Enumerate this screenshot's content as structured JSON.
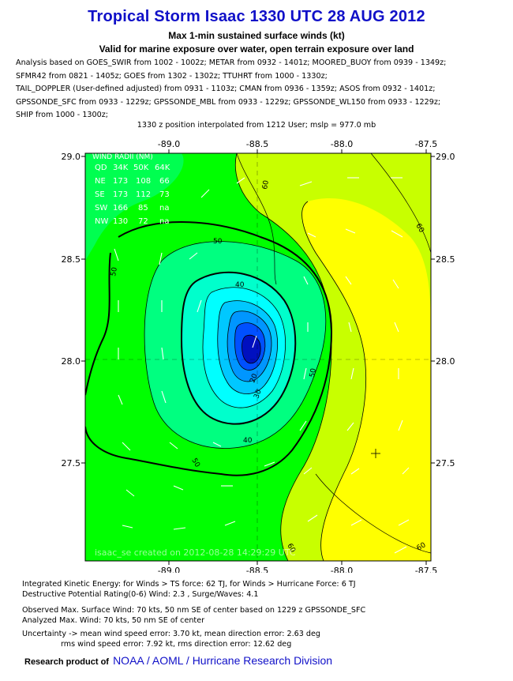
{
  "header": {
    "title": "Tropical Storm Isaac 1330 UTC 28 AUG 2012",
    "subtitle1": "Max 1-min sustained surface winds (kt)",
    "subtitle2": "Valid for marine exposure over water, open terrain exposure over land"
  },
  "analysis_lines": [
    "Analysis based on GOES_SWIR from 1002 - 1002z; METAR from 0932 - 1401z; MOORED_BUOY from 0939 - 1349z;",
    "SFMR42 from 0821 - 1405z; GOES from 1302 - 1302z; TTUHRT from 1000 - 1330z;",
    "TAIL_DOPPLER (User-defined adjusted) from 0931 - 1103z; CMAN from 0936 - 1359z; ASOS from 0932 - 1401z;",
    "GPSSONDE_SFC from 0933 - 1229z; GPSSONDE_MBL from 0933 - 1229z; GPSSONDE_WL150 from 0933 - 1229z;",
    "SHIP from 1000 - 1300z;"
  ],
  "position_line": "1330 z position interpolated from 1212 User; mslp = 977.0 mb",
  "map": {
    "x_ticks": [
      "-89.0",
      "-88.5",
      "-88.0",
      "-87.5"
    ],
    "y_ticks": [
      "29.0",
      "28.5",
      "28.0",
      "27.5"
    ],
    "contour_labels": [
      "60",
      "60",
      "60",
      "60",
      "50",
      "50",
      "50",
      "50",
      "40",
      "40",
      "30",
      "20"
    ],
    "wind_radii": {
      "title": "WIND RADII (NM)",
      "rows": [
        [
          "QD",
          "34K",
          "50K",
          "64K"
        ],
        [
          "NE",
          "173",
          "108",
          "66"
        ],
        [
          "SE",
          "173",
          "112",
          "73"
        ],
        [
          "SW",
          "166",
          "85",
          "na"
        ],
        [
          "NW",
          "130",
          "72",
          "na"
        ]
      ]
    },
    "credit": "isaac_se created on 2012-08-28 14:29:29 UTC",
    "colors": {
      "light_green": "#00ff00",
      "yellow_green": "#c8ff00",
      "yellow": "#ffff00",
      "cyan": "#00ffff",
      "blue": "#0050ff",
      "dark_blue": "#0010c0"
    }
  },
  "footer": {
    "ike": "Integrated Kinetic Energy: for Winds > TS force: 62 TJ, for Winds > Hurricane Force: 6 TJ",
    "dpr": "Destructive Potential Rating(0-6)   Wind: 2.3 , Surge/Waves: 4.1",
    "obs": "Observed Max. Surface Wind: 70 kts, 50 nm SE of center based on 1229 z GPSSONDE_SFC",
    "analyzed": "Analyzed Max. Wind: 70 kts, 50 nm  SE of center",
    "uncert1": "Uncertainty -> mean wind speed error: 3.70 kt, mean direction error: 2.63 deg",
    "uncert2": "rms wind speed error: 7.92 kt, rms direction error: 12.62 deg"
  },
  "brand": {
    "lead": "Research product of",
    "org": "NOAA  /  AOML  /  Hurricane Research Division"
  }
}
